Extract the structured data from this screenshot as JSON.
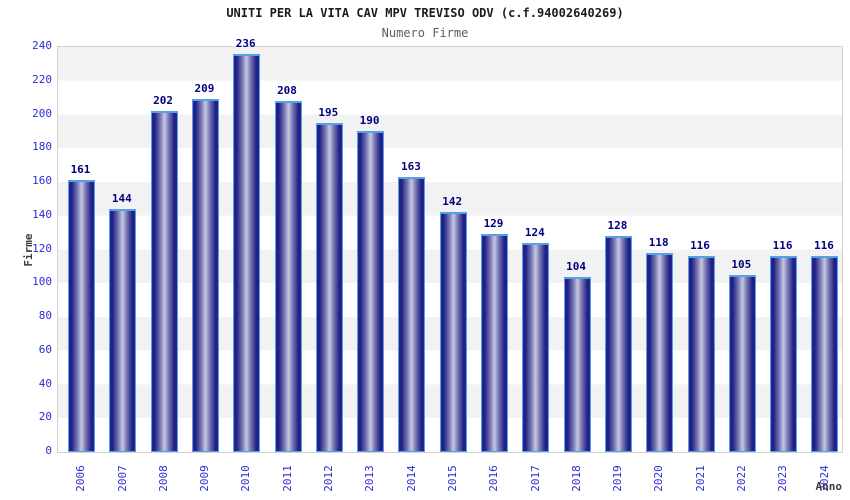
{
  "header": {
    "title": "UNITI PER LA VITA CAV MPV TREVISO ODV (c.f.94002640269)",
    "subtitle": "Numero Firme"
  },
  "chart_data": {
    "type": "bar",
    "title": "UNITI PER LA VITA CAV MPV TREVISO ODV (c.f.94002640269)",
    "subtitle": "Numero Firme",
    "xlabel": "Anno",
    "ylabel": "Firme",
    "categories": [
      "2006",
      "2007",
      "2008",
      "2009",
      "2010",
      "2011",
      "2012",
      "2013",
      "2014",
      "2015",
      "2016",
      "2017",
      "2018",
      "2019",
      "2020",
      "2021",
      "2022",
      "2023",
      "2024"
    ],
    "values": [
      161,
      144,
      202,
      209,
      236,
      208,
      195,
      190,
      163,
      142,
      129,
      124,
      104,
      128,
      118,
      116,
      105,
      116,
      116
    ],
    "ylim": [
      0,
      240
    ],
    "ytick_step": 20,
    "grid": "horizontal-bands",
    "legend": "none",
    "colors": {
      "bar_edge_border": "#54a0ea",
      "bar_gradient_dark": "#1e1e84",
      "bar_gradient_light": "#c8c8e2",
      "axis_tick_text": "#2d2dd2",
      "value_label_text": "#000082",
      "band_gray": "#f2f2f2",
      "plot_border": "#d2d2d2",
      "title_text": "#1c1c1c",
      "subtitle_text": "#5f5f5f",
      "axis_title_text": "#3c3c3c"
    }
  }
}
